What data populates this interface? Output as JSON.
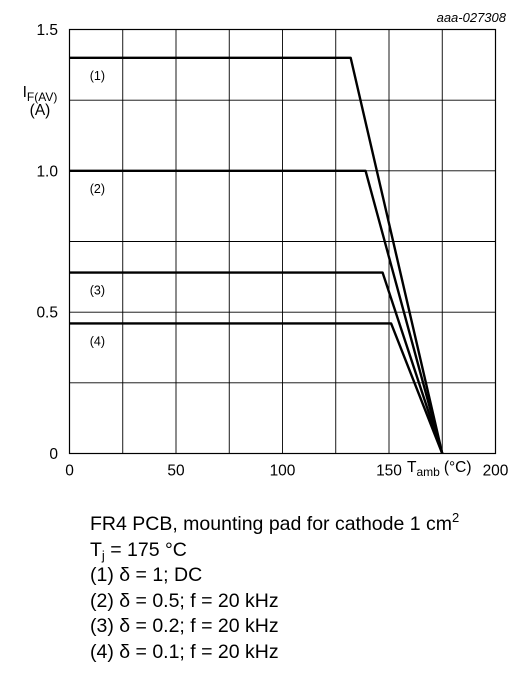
{
  "figure_id": "aaa-027308",
  "chart_data": {
    "type": "line",
    "ylabel_main": "I",
    "ylabel_sub": "F(AV)",
    "ylabel_unit": "(A)",
    "xlabel_main": "T",
    "xlabel_sub": "amb",
    "xlabel_unit": "(°C)",
    "xlim": [
      0,
      200
    ],
    "ylim": [
      0,
      1.5
    ],
    "x_ticks": [
      0,
      50,
      100,
      150,
      200
    ],
    "x_tick_labels": [
      "0",
      "50",
      "100",
      "150",
      "200"
    ],
    "y_ticks": [
      0,
      0.5,
      1.0,
      1.5
    ],
    "y_tick_labels": [
      "0",
      "0.5",
      "1.0",
      "1.5"
    ],
    "grid": true,
    "series": [
      {
        "name": "(1)",
        "x": [
          0,
          132,
          175
        ],
        "y": [
          1.4,
          1.4,
          0
        ]
      },
      {
        "name": "(2)",
        "x": [
          0,
          139,
          175
        ],
        "y": [
          1.0,
          1.0,
          0
        ]
      },
      {
        "name": "(3)",
        "x": [
          0,
          147,
          175
        ],
        "y": [
          0.64,
          0.64,
          0
        ]
      },
      {
        "name": "(4)",
        "x": [
          0,
          151,
          175
        ],
        "y": [
          0.46,
          0.46,
          0
        ]
      }
    ]
  },
  "caption": {
    "line1": "FR4 PCB, mounting pad for cathode 1 cm",
    "line1_sup": "2",
    "line2_a": "T",
    "line2_sub": "j",
    "line2_b": " = 175 °C",
    "items": [
      "(1) δ = 1; DC",
      "(2) δ = 0.5; f = 20 kHz",
      "(3) δ = 0.2; f = 20 kHz",
      "(4) δ = 0.1; f = 20 kHz"
    ]
  }
}
